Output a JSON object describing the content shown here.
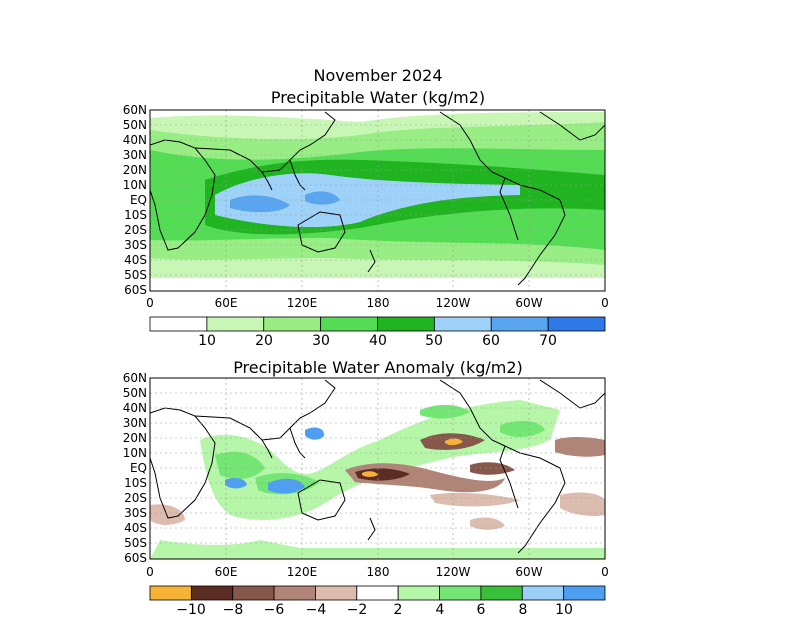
{
  "figure": {
    "title_line1": "November 2024",
    "title_line2": "Precipitable Water (kg/m2)",
    "title_panel2": "Precipitable Water Anomaly (kg/m2)"
  },
  "axes": {
    "lat_labels": [
      "60N",
      "50N",
      "40N",
      "30N",
      "20N",
      "10N",
      "EQ",
      "10S",
      "20S",
      "30S",
      "40S",
      "50S",
      "60S"
    ],
    "lon_labels": [
      "0",
      "60E",
      "120E",
      "180",
      "120W",
      "60W",
      "0"
    ]
  },
  "colorbar1": {
    "labels": [
      "10",
      "20",
      "30",
      "40",
      "50",
      "60",
      "70"
    ],
    "colors": [
      "#ffffff",
      "#c8f7b5",
      "#98ee84",
      "#55dc55",
      "#20b420",
      "#9fd2f8",
      "#5aa5f0",
      "#2f78e8"
    ]
  },
  "colorbar2": {
    "labels": [
      "−10",
      "−8",
      "−6",
      "−4",
      "−2",
      "2",
      "4",
      "6",
      "8",
      "10"
    ],
    "colors": [
      "#f7b336",
      "#5b2d22",
      "#86574b",
      "#b08476",
      "#dcbcae",
      "#ffffff",
      "#b6f6a8",
      "#74e674",
      "#38c03a",
      "#9ad0f8",
      "#4e9ef2"
    ]
  },
  "map": {
    "ocean_color": "#ffffff",
    "coast_color": "#000000",
    "grid_color": "#999999"
  }
}
